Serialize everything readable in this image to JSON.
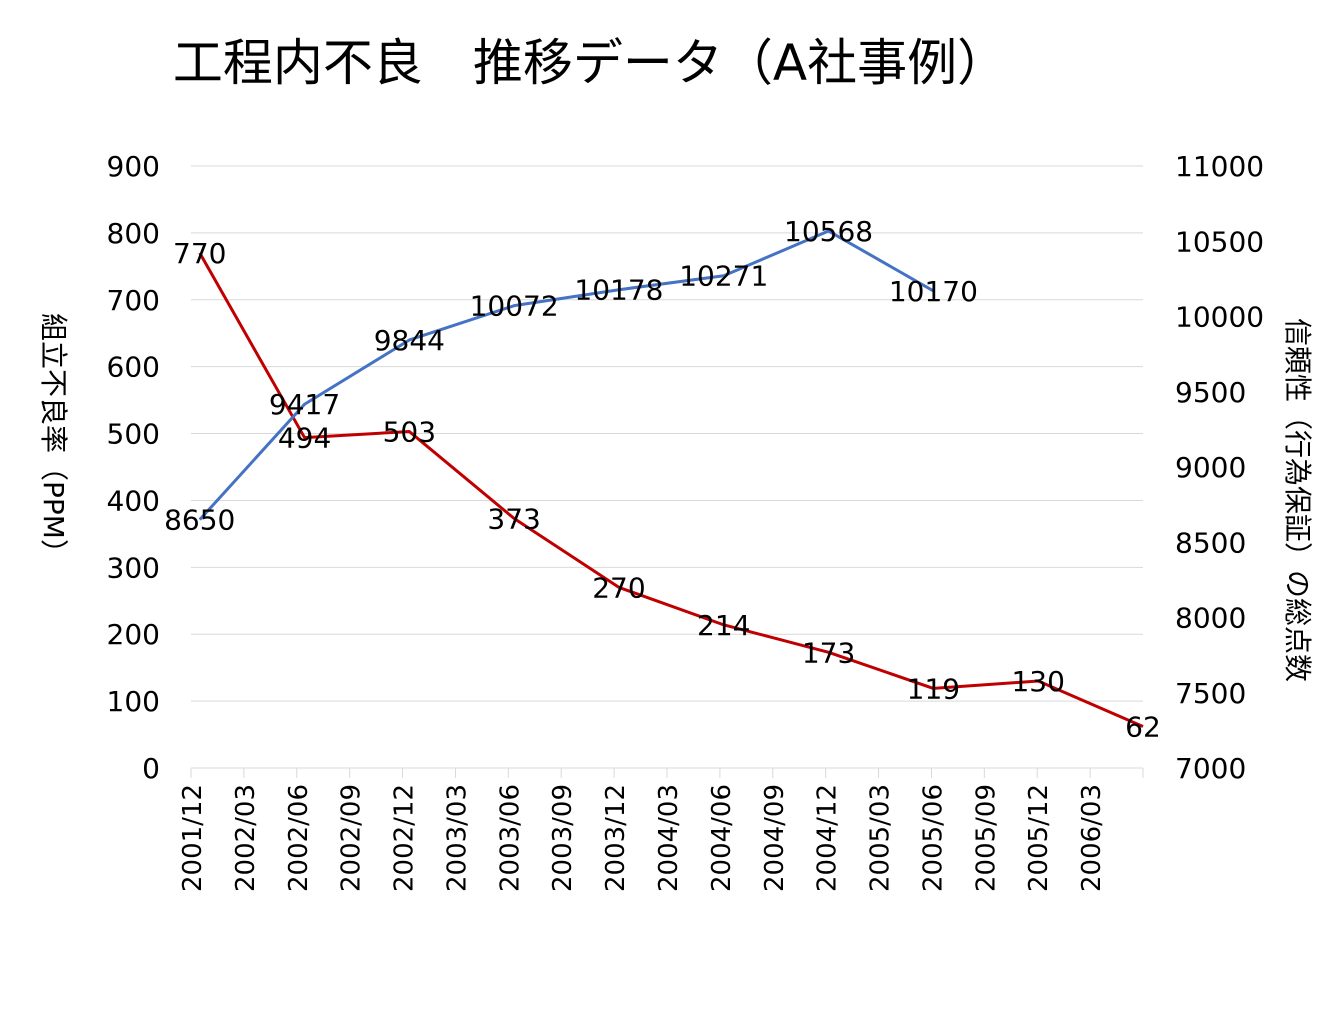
{
  "chart_data": {
    "type": "line",
    "title": "工程内不良　推移データ（A社事例）",
    "ylabel": "組立不良率（PPM）",
    "y2label": "信頼性（行為保証）の総点数",
    "xlabel": "",
    "categories": [
      "2001/12",
      "2002/03",
      "2002/06",
      "2002/09",
      "2002/12",
      "2003/03",
      "2003/06",
      "2003/09",
      "2003/12",
      "2004/03",
      "2004/06",
      "2004/09",
      "2004/12",
      "2005/03",
      "2005/06",
      "2005/09",
      "2005/12",
      "2006/03"
    ],
    "xlim": [
      "2001/12",
      "2006/06"
    ],
    "ylim": [
      0,
      900
    ],
    "yticks": [
      0,
      100,
      200,
      300,
      400,
      500,
      600,
      700,
      800,
      900
    ],
    "y2lim": [
      7000,
      11000
    ],
    "y2ticks": [
      7000,
      7500,
      8000,
      8500,
      9000,
      9500,
      10000,
      10500,
      11000
    ],
    "grid": true,
    "legend": "none",
    "series": [
      {
        "axis": "left",
        "color": "#c00000",
        "x": [
          "2001/12",
          "2002/06",
          "2002/12",
          "2003/06",
          "2003/12",
          "2004/06",
          "2004/12",
          "2005/06",
          "2005/12",
          "2006/06"
        ],
        "values": [
          770,
          494,
          503,
          373,
          270,
          214,
          173,
          119,
          130,
          62
        ]
      },
      {
        "axis": "right",
        "color": "#4472c4",
        "x": [
          "2001/12",
          "2002/06",
          "2002/12",
          "2003/06",
          "2003/12",
          "2004/06",
          "2004/12",
          "2005/06"
        ],
        "values": [
          8650,
          9417,
          9844,
          10072,
          10178,
          10271,
          10568,
          10170
        ]
      }
    ]
  }
}
